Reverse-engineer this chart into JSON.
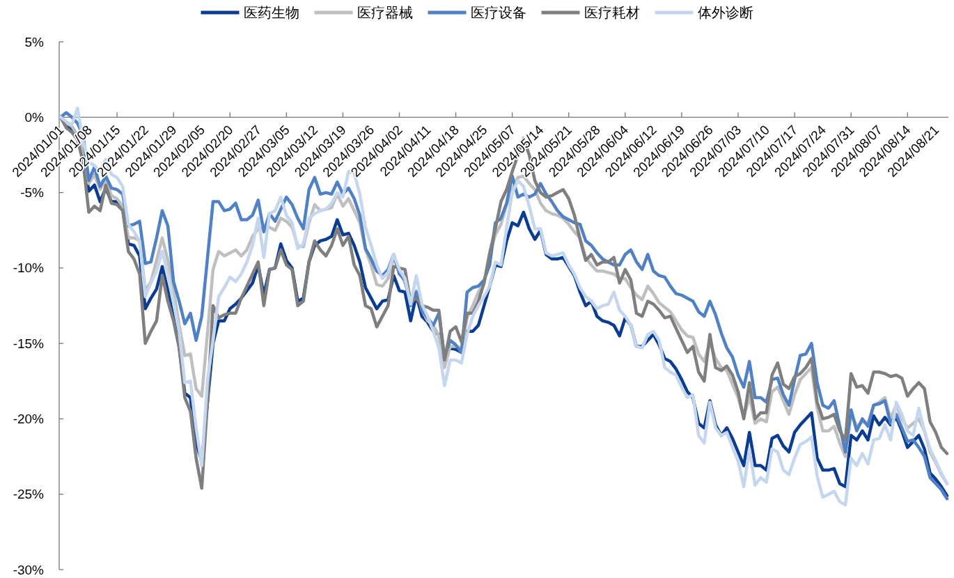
{
  "chart_data": {
    "type": "line",
    "legend": "top",
    "line_style": "solid",
    "ylim": [
      -30,
      5
    ],
    "yticks": [
      {
        "value": 5,
        "label": "5%"
      },
      {
        "value": 0,
        "label": "0%"
      },
      {
        "value": -5,
        "label": "-5%"
      },
      {
        "value": -10,
        "label": "-10%"
      },
      {
        "value": -15,
        "label": "-15%"
      },
      {
        "value": -20,
        "label": "-20%"
      },
      {
        "value": -25,
        "label": "-25%"
      },
      {
        "value": -30,
        "label": "-30%"
      }
    ],
    "categories": [
      "2024/01/01",
      null,
      null,
      null,
      null,
      "2024/01/08",
      null,
      null,
      null,
      null,
      "2024/01/15",
      null,
      null,
      null,
      null,
      "2024/01/22",
      null,
      null,
      null,
      null,
      "2024/01/29",
      null,
      null,
      null,
      null,
      "2024/02/05",
      null,
      null,
      null,
      null,
      "2024/02/20",
      null,
      null,
      null,
      null,
      "2024/02/27",
      null,
      null,
      null,
      null,
      "2024/03/05",
      null,
      null,
      null,
      null,
      "2024/03/12",
      null,
      null,
      null,
      null,
      "2024/03/19",
      null,
      null,
      null,
      null,
      "2024/03/26",
      null,
      null,
      null,
      null,
      "2024/04/02",
      null,
      null,
      null,
      null,
      "2024/04/11",
      null,
      null,
      null,
      null,
      "2024/04/18",
      null,
      null,
      null,
      null,
      "2024/04/25",
      null,
      null,
      null,
      null,
      "2024/05/07",
      null,
      null,
      null,
      null,
      "2024/05/14",
      null,
      null,
      null,
      null,
      "2024/05/21",
      null,
      null,
      null,
      null,
      "2024/05/28",
      null,
      null,
      null,
      null,
      "2024/06/04",
      null,
      null,
      null,
      null,
      "2024/06/12",
      null,
      null,
      null,
      null,
      "2024/06/19",
      null,
      null,
      null,
      null,
      "2024/06/26",
      null,
      null,
      null,
      null,
      "2024/07/03",
      null,
      null,
      null,
      null,
      "2024/07/10",
      null,
      null,
      null,
      null,
      "2024/07/17",
      null,
      null,
      null,
      null,
      "2024/07/24",
      null,
      null,
      null,
      null,
      "2024/07/31",
      null,
      null,
      null,
      null,
      "2024/08/07",
      null,
      null,
      null,
      null,
      "2024/08/14",
      null,
      null,
      null,
      null,
      "2024/08/21",
      null,
      null
    ],
    "series": [
      {
        "name": "医药生物",
        "color": "#0a3d91",
        "values": [
          0,
          -0.5,
          -0.9,
          -1.4,
          -2.5,
          -4.9,
          -4.5,
          -5.6,
          -4.7,
          -5.6,
          -5.6,
          -5.9,
          -8.4,
          -8.5,
          -9.2,
          -12.7,
          -12.0,
          -11.4,
          -9.9,
          -11.5,
          -13.3,
          -15.2,
          -18.3,
          -18.6,
          -21.6,
          -22.8,
          -19.0,
          -15.0,
          -13.5,
          -13.5,
          -12.7,
          -12.4,
          -12.0,
          -11.5,
          -11.0,
          -9.8,
          -11.8,
          -10.1,
          -10.0,
          -8.4,
          -9.5,
          -10.0,
          -12.2,
          -12.0,
          -9.6,
          -8.5,
          -8.2,
          -8.1,
          -7.9,
          -6.8,
          -7.8,
          -7.7,
          -8.5,
          -9.6,
          -11.3,
          -12.0,
          -12.7,
          -12.2,
          -12.1,
          -10.5,
          -11.5,
          -11.6,
          -13.5,
          -11.8,
          -13.2,
          -13.6,
          -14.2,
          -14.4,
          -15.9,
          -15.3,
          -15.4,
          -15.6,
          -14.2,
          -14.2,
          -13.8,
          -12.5,
          -11.2,
          -9.8,
          -9.9,
          -8.2,
          -7.0,
          -7.2,
          -6.3,
          -7.4,
          -8.1,
          -7.5,
          -9.1,
          -9.4,
          -9.4,
          -9.3,
          -9.9,
          -10.5,
          -11.6,
          -12.5,
          -12.2,
          -13.2,
          -13.5,
          -13.6,
          -13.8,
          -14.5,
          -13.3,
          -13.8,
          -15.2,
          -15.2,
          -14.8,
          -14.4,
          -15.1,
          -16.0,
          -16.2,
          -16.7,
          -17.4,
          -18.2,
          -18.6,
          -20.3,
          -20.6,
          -18.8,
          -20.4,
          -21.1,
          -20.6,
          -21.3,
          -22.2,
          -23.1,
          -20.9,
          -23.1,
          -23.1,
          -23.4,
          -21.3,
          -21.1,
          -21.8,
          -22.2,
          -20.9,
          -20.4,
          -20.0,
          -19.6,
          -22.6,
          -23.4,
          -23.4,
          -23.3,
          -24.3,
          -24.5,
          -21.1,
          -21.4,
          -20.8,
          -21.4,
          -19.8,
          -20.4,
          -19.9,
          -20.4,
          -19.9,
          -20.8,
          -21.9,
          -21.5,
          -21.1,
          -22.0,
          -23.6,
          -24.0,
          -24.5,
          -25.1
        ]
      },
      {
        "name": "医疗器械",
        "color": "#bfbfbf",
        "values": [
          0,
          -0.4,
          -0.6,
          -1.2,
          -2.3,
          -4.4,
          -3.8,
          -4.8,
          -4.1,
          -5.2,
          -5.4,
          -5.9,
          -8.0,
          -8.0,
          -8.2,
          -11.5,
          -10.9,
          -9.5,
          -8.0,
          -9.5,
          -11.5,
          -13.8,
          -15.8,
          -15.7,
          -18.0,
          -18.5,
          -14.4,
          -10.1,
          -8.9,
          -9.2,
          -9.0,
          -8.8,
          -9.2,
          -8.8,
          -7.9,
          -7.4,
          -7.4,
          -7.3,
          -7.5,
          -6.7,
          -6.9,
          -7.3,
          -8.5,
          -8.6,
          -7.0,
          -5.8,
          -6.2,
          -6.1,
          -6.0,
          -5.1,
          -5.9,
          -5.4,
          -6.2,
          -7.0,
          -8.8,
          -9.8,
          -11.1,
          -11.2,
          -10.7,
          -9.3,
          -10.2,
          -11.0,
          -12.0,
          -11.5,
          -12.8,
          -13.5,
          -13.8,
          -14.5,
          -16.6,
          -15.2,
          -15.2,
          -15.3,
          -13.3,
          -12.5,
          -11.6,
          -11.0,
          -9.1,
          -7.8,
          -7.1,
          -5.8,
          -4.8,
          -4.0,
          -3.9,
          -4.4,
          -4.8,
          -5.7,
          -6.2,
          -6.4,
          -6.5,
          -6.7,
          -7.1,
          -7.6,
          -8.0,
          -9.3,
          -9.8,
          -10.2,
          -10.2,
          -10.3,
          -10.4,
          -10.7,
          -10.7,
          -11.3,
          -11.8,
          -12.1,
          -11.2,
          -11.7,
          -12.3,
          -12.6,
          -12.9,
          -13.5,
          -14.1,
          -14.5,
          -14.6,
          -15.7,
          -16.2,
          -14.9,
          -16.0,
          -16.6,
          -16.8,
          -17.7,
          -18.6,
          -19.9,
          -18.5,
          -20.3,
          -20.0,
          -20.2,
          -18.2,
          -17.9,
          -18.8,
          -19.7,
          -18.4,
          -17.4,
          -17.0,
          -16.6,
          -19.3,
          -20.8,
          -20.8,
          -20.5,
          -21.6,
          -22.5,
          -19.7,
          -20.5,
          -20.2,
          -20.3,
          -19.1,
          -18.9,
          -18.6,
          -20.0,
          -19.1,
          -20.0,
          -20.6,
          -20.3,
          -20.0,
          -20.8,
          -22.2,
          -22.9,
          -23.7,
          -24.3
        ]
      },
      {
        "name": "医疗设备",
        "color": "#4f81c4",
        "values": [
          0,
          0.3,
          0.0,
          -0.4,
          -1.2,
          -4.2,
          -3.3,
          -4.6,
          -3.9,
          -4.7,
          -4.8,
          -5.1,
          -7.2,
          -7.1,
          -6.9,
          -9.7,
          -9.6,
          -8.0,
          -6.2,
          -7.2,
          -10.9,
          -12.2,
          -13.7,
          -13.0,
          -14.8,
          -13.2,
          -9.4,
          -5.6,
          -5.6,
          -6.2,
          -6.1,
          -5.7,
          -6.8,
          -6.8,
          -6.5,
          -5.5,
          -7.6,
          -6.4,
          -6.9,
          -6.1,
          -5.3,
          -5.8,
          -6.7,
          -7.4,
          -4.8,
          -4.0,
          -5.1,
          -5.0,
          -5.1,
          -4.3,
          -5.1,
          -4.7,
          -5.4,
          -6.5,
          -8.7,
          -9.4,
          -10.2,
          -10.5,
          -10.1,
          -9.1,
          -10.4,
          -10.8,
          -12.5,
          -11.6,
          -12.8,
          -13.3,
          -13.8,
          -13.0,
          -15.9,
          -14.8,
          -15.1,
          -15.6,
          -11.6,
          -11.3,
          -11.2,
          -10.8,
          -9.8,
          -7.0,
          -6.7,
          -5.7,
          -3.9,
          -5.3,
          -5.1,
          -5.3,
          -5.1,
          -4.4,
          -5.1,
          -5.6,
          -6.2,
          -6.6,
          -6.8,
          -7.0,
          -7.1,
          -8.2,
          -8.5,
          -9.0,
          -9.4,
          -9.6,
          -9.8,
          -9.8,
          -9.1,
          -8.8,
          -9.6,
          -10.1,
          -9.1,
          -10.2,
          -10.5,
          -10.6,
          -11.2,
          -11.7,
          -11.8,
          -12.0,
          -12.2,
          -12.9,
          -13.2,
          -12.2,
          -13.1,
          -14.3,
          -15.3,
          -15.9,
          -17.1,
          -17.9,
          -16.2,
          -18.6,
          -18.6,
          -18.9,
          -17.4,
          -17.3,
          -18.4,
          -19.1,
          -17.4,
          -15.8,
          -15.7,
          -15.0,
          -17.6,
          -19.1,
          -19.3,
          -18.8,
          -20.5,
          -22.2,
          -19.4,
          -20.8,
          -20.0,
          -20.5,
          -19.1,
          -19.0,
          -18.8,
          -20.3,
          -19.7,
          -20.6,
          -21.5,
          -21.4,
          -21.9,
          -22.5,
          -23.9,
          -24.3,
          -24.7,
          -25.3
        ]
      },
      {
        "name": "医疗耗材",
        "color": "#7f7f7f",
        "values": [
          0,
          -0.7,
          -1.0,
          -1.5,
          -3.0,
          -6.3,
          -5.9,
          -6.2,
          -4.5,
          -5.7,
          -5.8,
          -6.2,
          -8.9,
          -9.4,
          -10.4,
          -15.0,
          -14.2,
          -13.5,
          -10.5,
          -12.2,
          -13.5,
          -15.3,
          -18.6,
          -19.5,
          -22.6,
          -24.6,
          -19.0,
          -12.5,
          -13.3,
          -13.1,
          -13.0,
          -13.0,
          -12.0,
          -11.2,
          -10.4,
          -9.6,
          -12.5,
          -10.1,
          -10.0,
          -8.8,
          -9.8,
          -10.1,
          -12.5,
          -12.2,
          -9.6,
          -8.2,
          -8.8,
          -9.2,
          -8.5,
          -7.4,
          -8.5,
          -7.9,
          -9.8,
          -10.5,
          -12.5,
          -12.7,
          -13.9,
          -13.2,
          -12.5,
          -9.9,
          -10.0,
          -10.1,
          -12.3,
          -12.0,
          -12.5,
          -12.6,
          -12.8,
          -12.8,
          -16.1,
          -14.2,
          -13.9,
          -14.9,
          -13.0,
          -13.0,
          -12.2,
          -11.0,
          -9.0,
          -7.4,
          -5.6,
          -4.8,
          -3.6,
          -2.5,
          -1.4,
          -2.5,
          -4.2,
          -5.0,
          -5.3,
          -5.2,
          -5.0,
          -4.8,
          -5.4,
          -6.5,
          -8.1,
          -9.5,
          -9.1,
          -9.8,
          -9.6,
          -9.6,
          -9.3,
          -11.0,
          -10.1,
          -10.8,
          -13.0,
          -13.2,
          -12.2,
          -12.4,
          -12.8,
          -13.3,
          -13.2,
          -14.0,
          -14.8,
          -15.6,
          -15.2,
          -16.9,
          -17.5,
          -14.4,
          -16.6,
          -16.8,
          -16.5,
          -17.1,
          -18.2,
          -20.0,
          -17.6,
          -20.0,
          -19.6,
          -19.6,
          -17.1,
          -16.3,
          -17.7,
          -18.0,
          -17.2,
          -17.0,
          -16.6,
          -16.0,
          -18.9,
          -20.0,
          -19.9,
          -19.7,
          -20.8,
          -21.4,
          -17.0,
          -17.9,
          -17.8,
          -18.3,
          -16.9,
          -16.9,
          -17.0,
          -17.2,
          -17.1,
          -17.3,
          -18.5,
          -18.0,
          -17.6,
          -18.0,
          -20.2,
          -20.9,
          -21.9,
          -22.3
        ]
      },
      {
        "name": "体外诊断",
        "color": "#c5d7ee",
        "values": [
          0,
          -0.3,
          -0.5,
          0.6,
          -1.6,
          -3.0,
          -3.2,
          -3.6,
          -2.8,
          -3.8,
          -4.0,
          -4.6,
          -7.1,
          -7.6,
          -8.2,
          -11.9,
          -11.0,
          -10.2,
          -8.9,
          -10.4,
          -12.3,
          -14.2,
          -17.6,
          -17.5,
          -20.6,
          -23.1,
          -17.5,
          -14.8,
          -11.9,
          -11.3,
          -10.6,
          -10.9,
          -10.4,
          -9.6,
          -8.5,
          -6.7,
          -9.3,
          -6.4,
          -6.2,
          -5.3,
          -6.5,
          -7.0,
          -8.7,
          -8.4,
          -6.7,
          -6.4,
          -6.2,
          -6.1,
          -5.7,
          -5.0,
          -5.3,
          -3.6,
          -3.7,
          -5.1,
          -7.3,
          -8.5,
          -9.8,
          -10.7,
          -10.3,
          -9.1,
          -10.1,
          -10.7,
          -12.4,
          -10.5,
          -12.4,
          -13.2,
          -14.2,
          -15.3,
          -17.8,
          -16.1,
          -16.1,
          -16.3,
          -14.4,
          -13.2,
          -12.5,
          -11.9,
          -11.2,
          -9.6,
          -9.8,
          -7.3,
          -5.0,
          -4.2,
          -4.6,
          -5.9,
          -7.4,
          -7.4,
          -9.0,
          -9.2,
          -9.1,
          -9.0,
          -9.8,
          -10.4,
          -11.3,
          -11.9,
          -12.2,
          -12.7,
          -12.5,
          -12.4,
          -11.6,
          -12.8,
          -13.2,
          -13.8,
          -15.2,
          -15.3,
          -14.4,
          -14.2,
          -14.8,
          -16.6,
          -16.9,
          -17.1,
          -17.9,
          -18.6,
          -18.4,
          -21.1,
          -21.6,
          -18.9,
          -20.6,
          -21.1,
          -20.9,
          -21.9,
          -22.8,
          -24.5,
          -22.0,
          -24.4,
          -23.9,
          -24.2,
          -22.0,
          -22.2,
          -23.4,
          -23.7,
          -22.6,
          -21.7,
          -21.5,
          -21.2,
          -23.8,
          -25.2,
          -25.0,
          -24.8,
          -25.5,
          -25.7,
          -22.6,
          -23.1,
          -22.3,
          -23.0,
          -21.4,
          -21.3,
          -20.4,
          -21.4,
          -18.9,
          -19.7,
          -20.8,
          -21.1,
          -19.3,
          -20.8,
          -22.0,
          -22.8,
          -23.6,
          -24.3
        ]
      }
    ]
  }
}
